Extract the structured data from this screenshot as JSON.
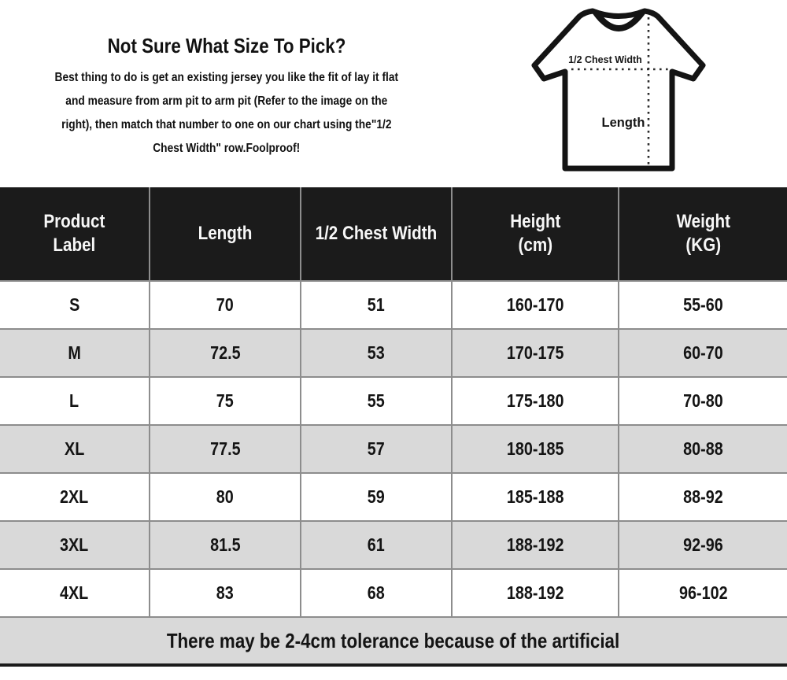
{
  "intro": {
    "title": "Not Sure What Size To Pick?",
    "lines": [
      "Best thing to do is get an existing jersey you like the fit of lay it flat",
      "and measure from arm pit to arm pit (Refer to the image on the",
      "right), then match that number to one on our chart using the\"1/2",
      "Chest Width\" row.Foolproof!"
    ]
  },
  "diagram": {
    "chest_label": "1/2 Chest Width",
    "length_label": "Length"
  },
  "table": {
    "headers": [
      "Product\nLabel",
      "Length",
      "1/2 Chest Width",
      "Height\n(cm)",
      "Weight\n(KG)"
    ],
    "rows": [
      {
        "size": "S",
        "length": "70",
        "half_chest": "51",
        "height": "160-170",
        "weight": "55-60"
      },
      {
        "size": "M",
        "length": "72.5",
        "half_chest": "53",
        "height": "170-175",
        "weight": "60-70"
      },
      {
        "size": "L",
        "length": "75",
        "half_chest": "55",
        "height": "175-180",
        "weight": "70-80"
      },
      {
        "size": "XL",
        "length": "77.5",
        "half_chest": "57",
        "height": "180-185",
        "weight": "80-88"
      },
      {
        "size": "2XL",
        "length": "80",
        "half_chest": "59",
        "height": "185-188",
        "weight": "88-92"
      },
      {
        "size": "3XL",
        "length": "81.5",
        "half_chest": "61",
        "height": "188-192",
        "weight": "92-96"
      },
      {
        "size": "4XL",
        "length": "83",
        "half_chest": "68",
        "height": "188-192",
        "weight": "96-102"
      }
    ],
    "note": "There may be 2-4cm tolerance because of the artificial"
  },
  "colors": {
    "header_bg": "#1b1b1b",
    "stripe_row": "#d9d9d9",
    "grid_line": "#8d8d8d",
    "text": "#141414"
  }
}
